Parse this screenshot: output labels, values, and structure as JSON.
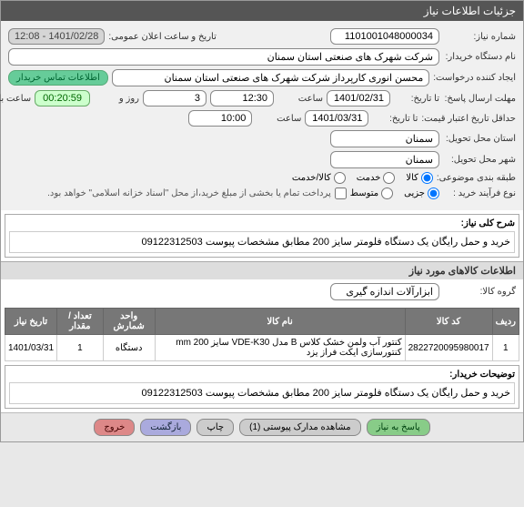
{
  "header": {
    "title": "جزئیات اطلاعات نیاز"
  },
  "form": {
    "need_number_label": "شماره نیاز:",
    "need_number": "1101001048000034",
    "public_date_label": "تاریخ و ساعت اعلان عمومی:",
    "public_date": "1401/02/28 - 12:08",
    "buyer_org_label": "نام دستگاه خریدار:",
    "buyer_org": "شرکت شهرک های صنعتی استان سمنان",
    "requester_label": "ایجاد کننده درخواست:",
    "requester": "محسن انوری کارپرداز شرکت شهرک های صنعتی استان سمنان",
    "contact_btn": "اطلاعات تماس خریدار",
    "deadline_label": "مهلت ارسال پاسخ:",
    "deadline_from": "تا تاریخ:",
    "deadline_date": "1401/02/31",
    "time_label": "ساعت",
    "deadline_time": "12:30",
    "days_label": "روز و",
    "days_value": "3",
    "countdown": "00:20:59",
    "remaining_label": "ساعت باقی مانده",
    "validity_label": "حداقل تاریخ اعتبار قیمت:",
    "validity_from": "تا تاریخ:",
    "validity_date": "1401/03/31",
    "validity_time": "10:00",
    "province_label": "استان محل تحویل:",
    "province": "سمنان",
    "city_label": "شهر محل تحویل:",
    "city": "سمنان",
    "category_label": "طبقه بندی موضوعی:",
    "cat_goods": "کالا",
    "cat_service": "خدمت",
    "cat_both": "کالا/خدمت",
    "process_label": "نوع فرآیند خرید :",
    "proc_partial": "جزیی",
    "proc_medium": "متوسط",
    "payment_note": "پرداخت تمام یا بخشی از مبلغ خرید،از محل \"اسناد خزانه اسلامی\" خواهد بود."
  },
  "desc": {
    "section_label": "شرح کلی نیاز:",
    "text": "خرید و حمل رایگان یک دستگاه فلومتر سایز 200 مطابق مشخصات پیوست 09122312503"
  },
  "items_section": {
    "title": "اطلاعات کالاهای مورد نیاز",
    "group_label": "گروه کالا:",
    "group_value": "ابزارآلات اندازه گیری"
  },
  "table": {
    "headers": [
      "ردیف",
      "کد کالا",
      "نام کالا",
      "واحد شمارش",
      "تعداد / مقدار",
      "تاریخ نیاز"
    ],
    "rows": [
      [
        "1",
        "2822720095980017",
        "کنتور آب ولمن خشک کلاس B مدل VDE-K30 سایز mm 200 کنتورسازی ایکت فراز یزد",
        "دستگاه",
        "1",
        "1401/03/31"
      ]
    ]
  },
  "buyer_notes": {
    "label": "توضیحات خریدار:",
    "text": "خرید و حمل رایگان یک دستگاه فلومتر سایز 200 مطابق مشخصات پیوست 09122312503"
  },
  "footer": {
    "reply": "پاسخ به نیاز",
    "attachments": "مشاهده مدارک پیوستی (1)",
    "print": "چاپ",
    "back": "بازگشت",
    "exit": "خروج"
  }
}
